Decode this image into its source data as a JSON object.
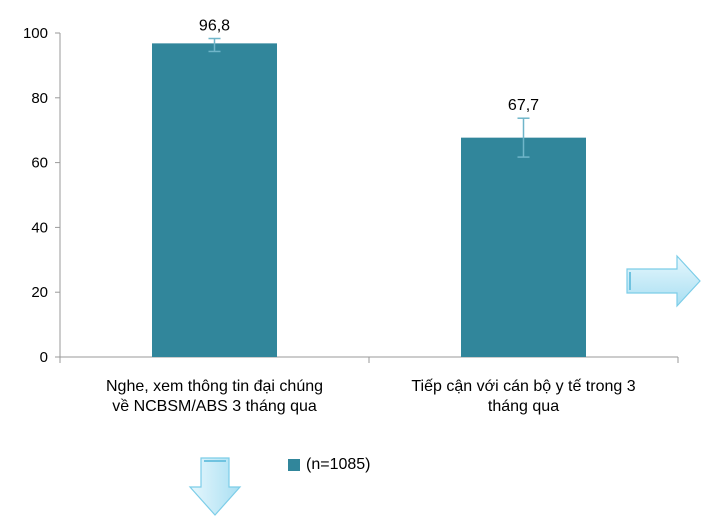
{
  "chart_data": {
    "type": "bar",
    "categories": [
      [
        "Nghe, xem thông tin đại chúng",
        "về NCBSM/ABS 3 tháng qua"
      ],
      [
        "Tiếp cận với cán bộ y tế trong 3",
        "tháng qua"
      ]
    ],
    "series": [
      {
        "name": "(n=1085)",
        "values": [
          96.8,
          67.7
        ],
        "value_labels": [
          "96,8",
          "67,7"
        ],
        "error_low": [
          94.3,
          61.7
        ],
        "error_high": [
          98.3,
          73.7
        ],
        "color": "#31869B",
        "error_color": "#6FB5C9"
      }
    ],
    "ylim": [
      0,
      100
    ],
    "yticks": [
      "0",
      "20",
      "40",
      "60",
      "80",
      "100"
    ],
    "ytick_values": [
      0,
      20,
      40,
      60,
      80,
      100
    ],
    "legend_position": "bottom",
    "grid": false,
    "arrow_color": "#BFE9F7"
  }
}
